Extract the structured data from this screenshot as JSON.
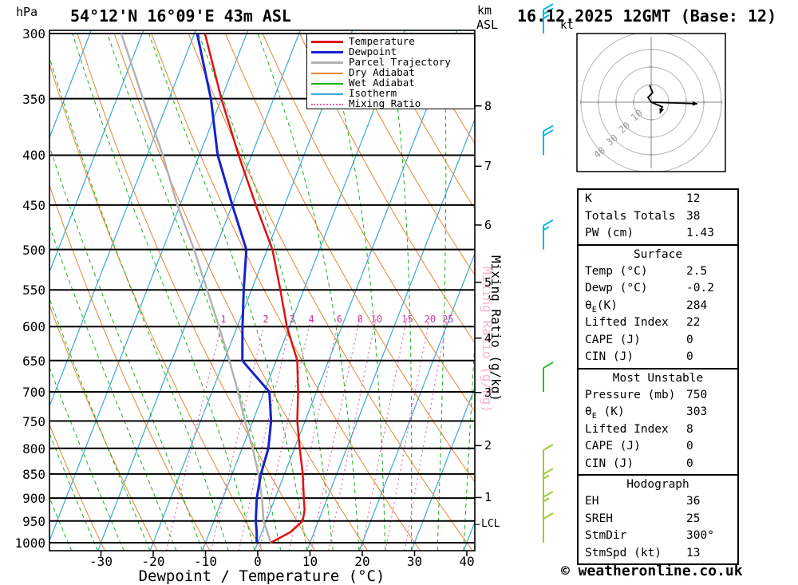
{
  "header": {
    "station": "54°12'N 16°09'E 43m ASL",
    "datetime": "16.12.2025 12GMT (Base: 12)",
    "left_unit": "hPa",
    "alt_unit_km": "km",
    "alt_unit_asl": "ASL"
  },
  "axes": {
    "xlabel": "Dewpoint / Temperature (°C)",
    "mixing_axis_label": "Mixing Ratio (g/kg)",
    "mixing_ghost_label": "Mixing Ratio (g/kg)",
    "lcl_label": "LCL"
  },
  "legend": {
    "items": [
      {
        "label": "Temperature",
        "color": "#e01010",
        "lw": 3,
        "dash": "solid"
      },
      {
        "label": "Dewpoint",
        "color": "#1522cc",
        "lw": 3,
        "dash": "solid"
      },
      {
        "label": "Parcel Trajectory",
        "color": "#b2b2b2",
        "lw": 3,
        "dash": "solid"
      },
      {
        "label": "Dry Adiabat",
        "color": "#e8852d",
        "lw": 2,
        "dash": "solid"
      },
      {
        "label": "Wet Adiabat",
        "color": "#17b317",
        "lw": 2,
        "dash": "solid"
      },
      {
        "label": "Isotherm",
        "color": "#3aa8d8",
        "lw": 2,
        "dash": "solid"
      },
      {
        "label": "Mixing Ratio",
        "color": "#f060aa",
        "lw": 2,
        "dash": "dotted"
      }
    ]
  },
  "chart_data": {
    "type": "skewt_log_p",
    "pressure_lines_hpa": [
      300,
      350,
      400,
      450,
      500,
      550,
      600,
      650,
      700,
      750,
      800,
      850,
      900,
      950,
      1000
    ],
    "temp_axis_c": {
      "min": -40,
      "max": 40,
      "ticks": [
        -30,
        -20,
        -10,
        0,
        10,
        20,
        30,
        40
      ]
    },
    "temperature_profile_p_t": [
      [
        1000,
        2.5
      ],
      [
        975,
        5.5
      ],
      [
        950,
        7
      ],
      [
        925,
        6.5
      ],
      [
        900,
        5.5
      ],
      [
        850,
        3.5
      ],
      [
        800,
        1
      ],
      [
        750,
        -1.5
      ],
      [
        700,
        -3.5
      ],
      [
        650,
        -6
      ],
      [
        600,
        -10.5
      ],
      [
        550,
        -14.5
      ],
      [
        500,
        -19
      ],
      [
        450,
        -25.5
      ],
      [
        400,
        -32.5
      ],
      [
        350,
        -40
      ],
      [
        300,
        -48
      ]
    ],
    "dewpoint_profile_p_t": [
      [
        1000,
        -0.2
      ],
      [
        975,
        -1
      ],
      [
        950,
        -2
      ],
      [
        900,
        -3.5
      ],
      [
        850,
        -4.5
      ],
      [
        800,
        -5
      ],
      [
        750,
        -6.5
      ],
      [
        700,
        -9
      ],
      [
        660,
        -15
      ],
      [
        650,
        -16.5
      ],
      [
        600,
        -19
      ],
      [
        550,
        -21.5
      ],
      [
        500,
        -24
      ],
      [
        450,
        -30
      ],
      [
        400,
        -36.5
      ],
      [
        350,
        -42
      ],
      [
        300,
        -49.5
      ]
    ],
    "parcel_profile_p_t": [
      [
        1000,
        2.5
      ],
      [
        950,
        -0.5
      ],
      [
        900,
        -2.5
      ],
      [
        850,
        -5
      ],
      [
        800,
        -8
      ],
      [
        750,
        -11.5
      ],
      [
        700,
        -15
      ],
      [
        650,
        -19
      ],
      [
        600,
        -23.5
      ],
      [
        550,
        -28.5
      ],
      [
        500,
        -34
      ],
      [
        450,
        -40.5
      ],
      [
        400,
        -47
      ],
      [
        350,
        -55
      ],
      [
        300,
        -64
      ]
    ],
    "isotherms_c": {
      "start": -80,
      "end": 40,
      "step": 10
    },
    "dry_adiabats_c": {
      "start": -30,
      "end": 160,
      "step": 10
    },
    "wet_adiabats_c": {
      "start": -40,
      "end": 40,
      "step": 5
    },
    "mixing_ratio_gkg": [
      1,
      2,
      3,
      4,
      6,
      8,
      10,
      15,
      20,
      25
    ],
    "km_asl_ticks": [
      1,
      2,
      3,
      4,
      5,
      6,
      7,
      8
    ],
    "lcl_pressure_hpa": 958,
    "wind_barbs": [
      {
        "p": 300,
        "kt": 25,
        "color": "#00b7eb"
      },
      {
        "p": 400,
        "kt": 20,
        "color": "#00b7eb"
      },
      {
        "p": 500,
        "kt": 15,
        "color": "#00b7eb"
      },
      {
        "p": 700,
        "kt": 10,
        "color": "#2fbb2f"
      },
      {
        "p": 850,
        "kt": 10,
        "color": "#9acd32"
      },
      {
        "p": 900,
        "kt": 15,
        "color": "#9acd32"
      },
      {
        "p": 950,
        "kt": 15,
        "color": "#9acd32"
      },
      {
        "p": 1000,
        "kt": 10,
        "color": "#9acd32"
      }
    ],
    "hodograph": {
      "unit": "kt",
      "rings_kt": [
        10,
        20,
        30,
        40
      ],
      "trace_main": [
        [
          -2,
          -21
        ],
        [
          2,
          -12
        ],
        [
          -4,
          -6
        ],
        [
          0,
          0
        ],
        [
          14,
          6
        ],
        [
          11,
          14
        ]
      ],
      "trace_storm": [
        [
          0,
          0
        ],
        [
          58,
          2
        ]
      ]
    }
  },
  "table": {
    "boxes": [
      {
        "rows": [
          {
            "label": "K",
            "value": "12"
          },
          {
            "label": "Totals Totals",
            "value": "38"
          },
          {
            "label": "PW (cm)",
            "value": "1.43"
          }
        ]
      },
      {
        "header": "Surface",
        "rows": [
          {
            "label": "Temp (°C)",
            "value": "2.5"
          },
          {
            "label": "Dewp (°C)",
            "value": "-0.2"
          },
          {
            "label": "θ",
            "sub": "E",
            "label2": "(K)",
            "value": "284"
          },
          {
            "label": "Lifted Index",
            "value": "22"
          },
          {
            "label": "CAPE (J)",
            "value": "0"
          },
          {
            "label": "CIN (J)",
            "value": "0"
          }
        ]
      },
      {
        "header": "Most Unstable",
        "rows": [
          {
            "label": "Pressure (mb)",
            "value": "750"
          },
          {
            "label": "θ",
            "sub": "E",
            "label2": " (K)",
            "value": "303"
          },
          {
            "label": "Lifted Index",
            "value": "8"
          },
          {
            "label": "CAPE (J)",
            "value": "0"
          },
          {
            "label": "CIN (J)",
            "value": "0"
          }
        ]
      },
      {
        "header": "Hodograph",
        "rows": [
          {
            "label": "EH",
            "value": "36"
          },
          {
            "label": "SREH",
            "value": "25"
          },
          {
            "label": "StmDir",
            "value": "300°"
          },
          {
            "label": "StmSpd (kt)",
            "value": "13"
          }
        ]
      }
    ]
  },
  "footer": {
    "copyright": "© weatheronline.co.uk"
  },
  "colors": {
    "temperature": "#e01010",
    "dewpoint": "#1522cc",
    "parcel": "#b2b2b2",
    "dry_adiabat": "#e8852d",
    "wet_adiabat": "#17b317",
    "isotherm": "#3aa8d8",
    "mixing_ratio": "#f060aa",
    "pressure_line": "#000000",
    "frame": "#000000"
  }
}
